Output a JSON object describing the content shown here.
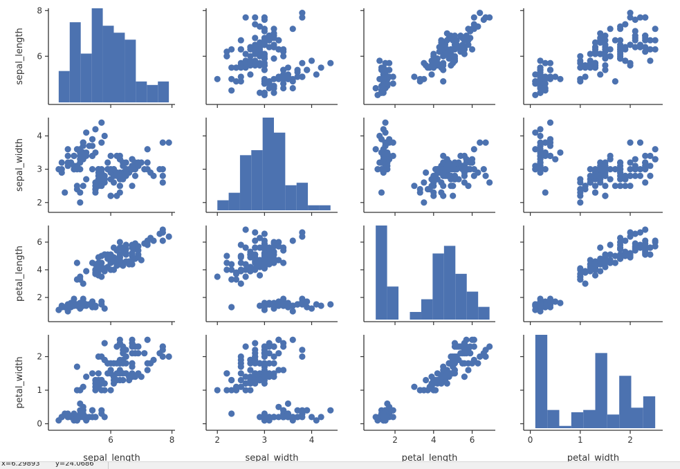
{
  "chart_data": {
    "type": "scatter",
    "variables": [
      "sepal_length",
      "sepal_width",
      "petal_length",
      "petal_width"
    ],
    "color": "#4c72b0",
    "diagonal": "histogram",
    "bins": 10,
    "axes": {
      "sepal_length": {
        "lim": [
          4.1,
          8.1
        ],
        "ticks": [
          6,
          8
        ],
        "ticks_y": [
          6,
          8
        ]
      },
      "sepal_width": {
        "lim": [
          1.85,
          4.55
        ],
        "ticks": [
          2,
          3,
          4
        ],
        "ticks_y": [
          2,
          3,
          4
        ]
      },
      "petal_length": {
        "lim": [
          0.6,
          7.2
        ],
        "ticks": [
          2,
          4,
          6
        ],
        "ticks_y": [
          2,
          4,
          6
        ]
      },
      "petal_width": {
        "lim": [
          -0.05,
          2.65
        ],
        "ticks": [
          0,
          1,
          2
        ],
        "ticks_y": [
          0,
          1,
          2
        ]
      }
    },
    "rows": [
      [
        5.1,
        3.5,
        1.4,
        0.2
      ],
      [
        4.9,
        3.0,
        1.4,
        0.2
      ],
      [
        4.7,
        3.2,
        1.3,
        0.2
      ],
      [
        4.6,
        3.1,
        1.5,
        0.2
      ],
      [
        5.0,
        3.6,
        1.4,
        0.2
      ],
      [
        5.4,
        3.9,
        1.7,
        0.4
      ],
      [
        4.6,
        3.4,
        1.4,
        0.3
      ],
      [
        5.0,
        3.4,
        1.5,
        0.2
      ],
      [
        4.4,
        2.9,
        1.4,
        0.2
      ],
      [
        4.9,
        3.1,
        1.5,
        0.1
      ],
      [
        5.4,
        3.7,
        1.5,
        0.2
      ],
      [
        4.8,
        3.4,
        1.6,
        0.2
      ],
      [
        4.8,
        3.0,
        1.4,
        0.1
      ],
      [
        4.3,
        3.0,
        1.1,
        0.1
      ],
      [
        5.8,
        4.0,
        1.2,
        0.2
      ],
      [
        5.7,
        4.4,
        1.5,
        0.4
      ],
      [
        5.4,
        3.9,
        1.3,
        0.4
      ],
      [
        5.1,
        3.5,
        1.4,
        0.3
      ],
      [
        5.7,
        3.8,
        1.7,
        0.3
      ],
      [
        5.1,
        3.8,
        1.5,
        0.3
      ],
      [
        5.4,
        3.4,
        1.7,
        0.2
      ],
      [
        5.1,
        3.7,
        1.5,
        0.4
      ],
      [
        4.6,
        3.6,
        1.0,
        0.2
      ],
      [
        5.1,
        3.3,
        1.7,
        0.5
      ],
      [
        4.8,
        3.4,
        1.9,
        0.2
      ],
      [
        5.0,
        3.0,
        1.6,
        0.2
      ],
      [
        5.0,
        3.4,
        1.6,
        0.4
      ],
      [
        5.2,
        3.5,
        1.5,
        0.2
      ],
      [
        5.2,
        3.4,
        1.4,
        0.2
      ],
      [
        4.7,
        3.2,
        1.6,
        0.2
      ],
      [
        4.8,
        3.1,
        1.6,
        0.2
      ],
      [
        5.4,
        3.4,
        1.5,
        0.4
      ],
      [
        5.2,
        4.1,
        1.5,
        0.1
      ],
      [
        5.5,
        4.2,
        1.4,
        0.2
      ],
      [
        4.9,
        3.1,
        1.5,
        0.2
      ],
      [
        5.0,
        3.2,
        1.2,
        0.2
      ],
      [
        5.5,
        3.5,
        1.3,
        0.2
      ],
      [
        4.9,
        3.6,
        1.4,
        0.1
      ],
      [
        4.4,
        3.0,
        1.3,
        0.2
      ],
      [
        5.1,
        3.4,
        1.5,
        0.2
      ],
      [
        5.0,
        3.5,
        1.3,
        0.3
      ],
      [
        4.5,
        2.3,
        1.3,
        0.3
      ],
      [
        4.4,
        3.2,
        1.3,
        0.2
      ],
      [
        5.0,
        3.5,
        1.6,
        0.6
      ],
      [
        5.1,
        3.8,
        1.9,
        0.4
      ],
      [
        4.8,
        3.0,
        1.4,
        0.3
      ],
      [
        5.1,
        3.8,
        1.6,
        0.2
      ],
      [
        4.6,
        3.2,
        1.4,
        0.2
      ],
      [
        5.3,
        3.7,
        1.5,
        0.2
      ],
      [
        5.0,
        3.3,
        1.4,
        0.2
      ],
      [
        7.0,
        3.2,
        4.7,
        1.4
      ],
      [
        6.4,
        3.2,
        4.5,
        1.5
      ],
      [
        6.9,
        3.1,
        4.9,
        1.5
      ],
      [
        5.5,
        2.3,
        4.0,
        1.3
      ],
      [
        6.5,
        2.8,
        4.6,
        1.5
      ],
      [
        5.7,
        2.8,
        4.5,
        1.3
      ],
      [
        6.3,
        3.3,
        4.7,
        1.6
      ],
      [
        4.9,
        2.4,
        3.3,
        1.0
      ],
      [
        6.6,
        2.9,
        4.6,
        1.3
      ],
      [
        5.2,
        2.7,
        3.9,
        1.4
      ],
      [
        5.0,
        2.0,
        3.5,
        1.0
      ],
      [
        5.9,
        3.0,
        4.2,
        1.5
      ],
      [
        6.0,
        2.2,
        4.0,
        1.0
      ],
      [
        6.1,
        2.9,
        4.7,
        1.4
      ],
      [
        5.6,
        2.9,
        3.6,
        1.3
      ],
      [
        6.7,
        3.1,
        4.4,
        1.4
      ],
      [
        5.6,
        3.0,
        4.5,
        1.5
      ],
      [
        5.8,
        2.7,
        4.1,
        1.0
      ],
      [
        6.2,
        2.2,
        4.5,
        1.5
      ],
      [
        5.6,
        2.5,
        3.9,
        1.1
      ],
      [
        5.9,
        3.2,
        4.8,
        1.8
      ],
      [
        6.1,
        2.8,
        4.0,
        1.3
      ],
      [
        6.3,
        2.5,
        4.9,
        1.5
      ],
      [
        6.1,
        2.8,
        4.7,
        1.2
      ],
      [
        6.4,
        2.9,
        4.3,
        1.3
      ],
      [
        6.6,
        3.0,
        4.4,
        1.4
      ],
      [
        6.8,
        2.8,
        4.8,
        1.4
      ],
      [
        6.7,
        3.0,
        5.0,
        1.7
      ],
      [
        6.0,
        2.9,
        4.5,
        1.5
      ],
      [
        5.7,
        2.6,
        3.5,
        1.0
      ],
      [
        5.5,
        2.4,
        3.8,
        1.1
      ],
      [
        5.5,
        2.4,
        3.7,
        1.0
      ],
      [
        5.8,
        2.7,
        3.9,
        1.2
      ],
      [
        6.0,
        2.7,
        5.1,
        1.6
      ],
      [
        5.4,
        3.0,
        4.5,
        1.5
      ],
      [
        6.0,
        3.4,
        4.5,
        1.6
      ],
      [
        6.7,
        3.1,
        4.7,
        1.5
      ],
      [
        6.3,
        2.3,
        4.4,
        1.3
      ],
      [
        5.6,
        3.0,
        4.1,
        1.3
      ],
      [
        5.5,
        2.5,
        4.0,
        1.3
      ],
      [
        5.5,
        2.6,
        4.4,
        1.2
      ],
      [
        6.1,
        3.0,
        4.6,
        1.4
      ],
      [
        5.8,
        2.6,
        4.0,
        1.2
      ],
      [
        5.0,
        2.3,
        3.3,
        1.0
      ],
      [
        5.6,
        2.7,
        4.2,
        1.3
      ],
      [
        5.7,
        3.0,
        4.2,
        1.2
      ],
      [
        5.7,
        2.9,
        4.2,
        1.3
      ],
      [
        6.2,
        2.9,
        4.3,
        1.3
      ],
      [
        5.1,
        2.5,
        3.0,
        1.1
      ],
      [
        5.7,
        2.8,
        4.1,
        1.3
      ],
      [
        6.3,
        3.3,
        6.0,
        2.5
      ],
      [
        5.8,
        2.7,
        5.1,
        1.9
      ],
      [
        7.1,
        3.0,
        5.9,
        2.1
      ],
      [
        6.3,
        2.9,
        5.6,
        1.8
      ],
      [
        6.5,
        3.0,
        5.8,
        2.2
      ],
      [
        7.6,
        3.0,
        6.6,
        2.1
      ],
      [
        4.9,
        2.5,
        4.5,
        1.7
      ],
      [
        7.3,
        2.9,
        6.3,
        1.8
      ],
      [
        6.7,
        2.5,
        5.8,
        1.8
      ],
      [
        7.2,
        3.6,
        6.1,
        2.5
      ],
      [
        6.5,
        3.2,
        5.1,
        2.0
      ],
      [
        6.4,
        2.7,
        5.3,
        1.9
      ],
      [
        6.8,
        3.0,
        5.5,
        2.1
      ],
      [
        5.7,
        2.5,
        5.0,
        2.0
      ],
      [
        5.8,
        2.8,
        5.1,
        2.4
      ],
      [
        6.4,
        3.2,
        5.3,
        2.3
      ],
      [
        6.5,
        3.0,
        5.5,
        1.8
      ],
      [
        7.7,
        3.8,
        6.7,
        2.2
      ],
      [
        7.7,
        2.6,
        6.9,
        2.3
      ],
      [
        6.0,
        2.2,
        5.0,
        1.5
      ],
      [
        6.9,
        3.2,
        5.7,
        2.3
      ],
      [
        5.6,
        2.8,
        4.9,
        2.0
      ],
      [
        7.7,
        2.8,
        6.7,
        2.0
      ],
      [
        6.3,
        2.7,
        4.9,
        1.8
      ],
      [
        6.7,
        3.3,
        5.7,
        2.1
      ],
      [
        7.2,
        3.2,
        6.0,
        1.8
      ],
      [
        6.2,
        2.8,
        4.8,
        1.8
      ],
      [
        6.1,
        3.0,
        4.9,
        1.8
      ],
      [
        6.4,
        2.8,
        5.6,
        2.1
      ],
      [
        7.2,
        3.0,
        5.8,
        1.6
      ],
      [
        7.4,
        2.8,
        6.1,
        1.9
      ],
      [
        7.9,
        3.8,
        6.4,
        2.0
      ],
      [
        6.4,
        2.8,
        5.6,
        2.2
      ],
      [
        6.3,
        2.8,
        5.1,
        1.5
      ],
      [
        6.1,
        2.6,
        5.6,
        1.4
      ],
      [
        7.7,
        3.0,
        6.1,
        2.3
      ],
      [
        6.3,
        3.4,
        5.6,
        2.4
      ],
      [
        6.4,
        3.1,
        5.5,
        1.8
      ],
      [
        6.0,
        3.0,
        4.8,
        1.8
      ],
      [
        6.9,
        3.1,
        5.4,
        2.1
      ],
      [
        6.7,
        3.1,
        5.6,
        2.4
      ],
      [
        6.9,
        3.1,
        5.1,
        2.3
      ],
      [
        5.8,
        2.7,
        5.1,
        1.9
      ],
      [
        6.8,
        3.2,
        5.9,
        2.3
      ],
      [
        6.7,
        3.3,
        5.7,
        2.5
      ],
      [
        6.7,
        3.0,
        5.2,
        2.3
      ],
      [
        6.3,
        2.5,
        5.0,
        1.9
      ],
      [
        6.5,
        3.0,
        5.2,
        2.0
      ],
      [
        6.2,
        3.4,
        5.4,
        2.3
      ],
      [
        5.9,
        3.0,
        5.1,
        1.8
      ]
    ]
  },
  "status_bar": {
    "x_readout": "x=6.29893",
    "y_readout": "y=24.0686"
  }
}
